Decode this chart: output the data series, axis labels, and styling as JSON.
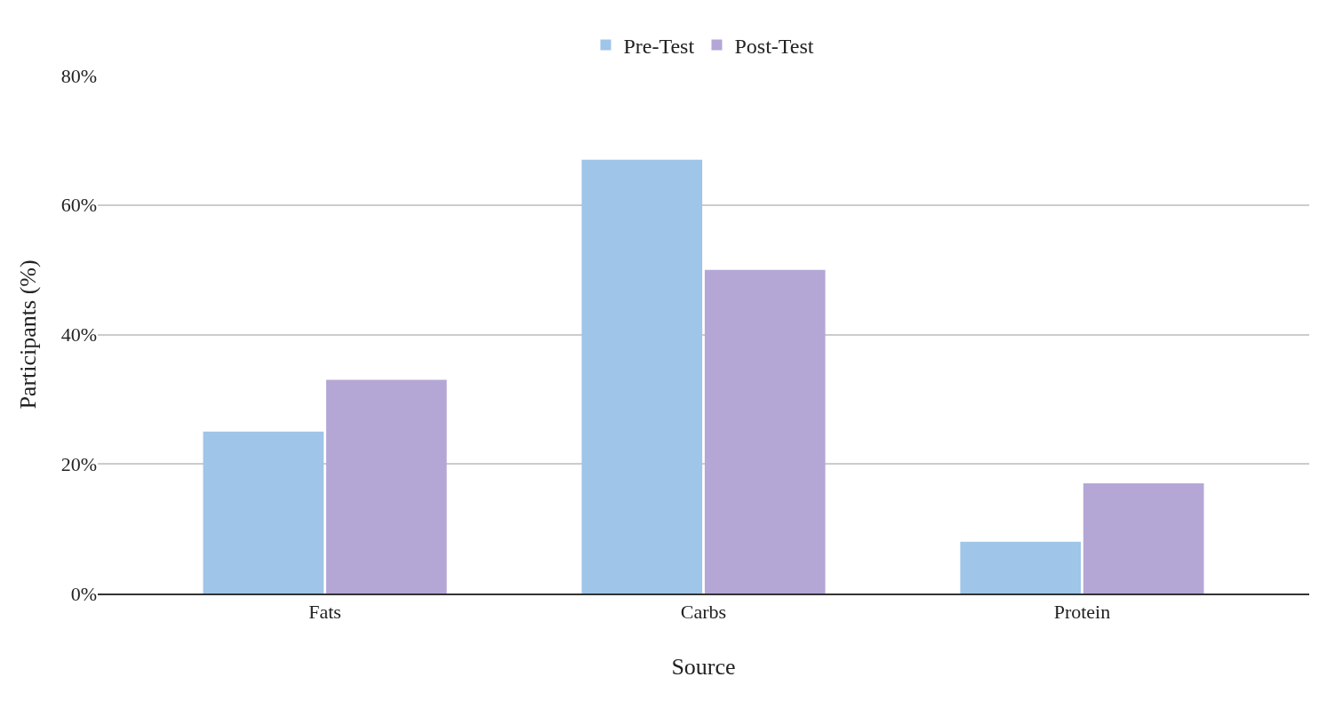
{
  "chart_data": {
    "type": "bar",
    "xlabel": "Source",
    "ylabel": "Participants (%)",
    "categories": [
      "Fats",
      "Carbs",
      "Protein"
    ],
    "series": [
      {
        "name": "Pre-Test",
        "color": "#9fc5e8",
        "values": [
          25,
          67,
          8
        ]
      },
      {
        "name": "Post-Test",
        "color": "#b4a7d6",
        "values": [
          33,
          50,
          17
        ]
      }
    ],
    "ylim": [
      0,
      80
    ],
    "yticks": [
      {
        "value": 0,
        "label": "0%"
      },
      {
        "value": 20,
        "label": "20%"
      },
      {
        "value": 40,
        "label": "40%"
      },
      {
        "value": 60,
        "label": "60%"
      },
      {
        "value": 80,
        "label": "80%"
      }
    ],
    "grid": "y",
    "legend": "top"
  }
}
